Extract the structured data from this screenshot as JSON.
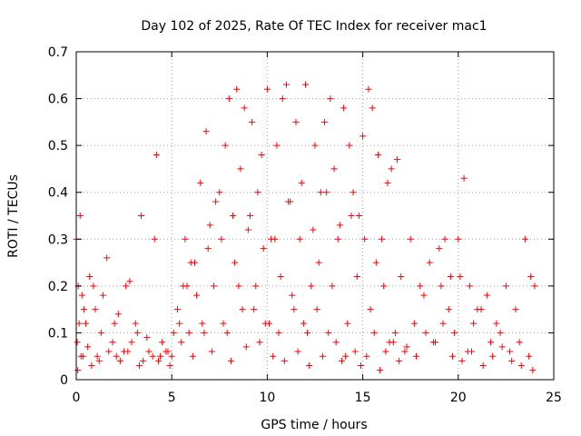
{
  "chart_data": {
    "type": "scatter",
    "title": "Day 102 of 2025, Rate Of TEC Index for receiver mac1",
    "xlabel": "GPS time / hours",
    "ylabel": "ROTI / TECUs",
    "xlim": [
      0,
      25
    ],
    "ylim": [
      0,
      0.7
    ],
    "xticks": [
      "0",
      "5",
      "10",
      "15",
      "20",
      "25"
    ],
    "yticks": [
      "0",
      "0.1",
      "0.2",
      "0.3",
      "0.4",
      "0.5",
      "0.6",
      "0.7"
    ],
    "grid": true,
    "marker": "+",
    "color": "#ff0000",
    "series": [
      {
        "x": [
          0.0,
          0.1,
          0.2,
          0.3,
          0.5,
          0.7,
          1.0,
          1.3,
          1.6,
          1.9,
          2.2,
          2.5,
          2.8,
          3.1,
          3.4,
          3.7,
          4.0,
          4.2,
          4.5,
          4.8,
          5.1,
          5.4,
          5.7,
          5.8,
          6.0,
          6.3,
          6.5,
          6.8,
          7.0,
          7.3,
          7.5,
          7.8,
          8.0,
          8.2,
          8.4,
          8.6,
          8.8,
          9.0,
          9.2,
          9.5,
          9.7,
          10.0,
          10.2,
          10.5,
          10.8,
          11.0,
          11.2,
          11.5,
          11.8,
          12.0,
          12.3,
          12.5,
          12.8,
          13.0,
          13.3,
          13.5,
          13.8,
          14.0,
          14.3,
          14.5,
          14.8,
          15.0,
          15.3,
          15.5,
          15.8,
          16.0,
          16.3,
          16.5,
          16.8,
          17.0,
          17.5,
          18.0,
          18.5,
          19.0,
          19.3,
          19.6,
          20.0,
          20.3,
          20.6,
          21.0,
          21.5,
          22.0,
          22.5,
          23.0,
          23.5,
          23.8,
          24.0,
          0.05,
          0.15,
          0.25,
          0.4,
          0.6,
          0.9,
          1.1,
          1.4,
          1.7,
          2.0,
          2.3,
          2.6,
          2.9,
          3.2,
          3.5,
          3.8,
          4.1,
          4.4,
          4.7,
          5.0,
          5.3,
          5.6,
          5.9,
          6.2,
          6.6,
          6.9,
          7.2,
          7.6,
          7.9,
          8.3,
          8.7,
          9.1,
          9.4,
          9.8,
          10.1,
          10.4,
          10.7,
          11.1,
          11.4,
          11.7,
          12.1,
          12.4,
          12.7,
          13.1,
          13.4,
          13.7,
          14.1,
          14.4,
          14.7,
          15.1,
          15.4,
          15.7,
          16.1,
          16.4,
          16.7,
          17.2,
          17.7,
          18.2,
          18.7,
          19.1,
          19.5,
          19.8,
          20.1,
          20.5,
          20.8,
          21.2,
          21.7,
          22.2,
          22.7,
          23.2,
          23.7,
          0.08,
          0.35,
          0.8,
          1.2,
          2.1,
          2.7,
          3.3,
          4.3,
          4.9,
          5.5,
          6.1,
          6.7,
          7.1,
          7.7,
          8.1,
          8.5,
          8.9,
          9.3,
          9.6,
          9.9,
          10.3,
          10.6,
          10.9,
          11.3,
          11.6,
          11.9,
          12.2,
          12.6,
          12.9,
          13.2,
          13.6,
          13.9,
          14.2,
          14.6,
          14.9,
          15.2,
          15.6,
          15.9,
          16.2,
          16.6,
          16.9,
          17.3,
          17.8,
          18.3,
          18.8,
          19.2,
          19.7,
          20.2,
          20.7,
          21.3,
          21.8,
          22.3,
          22.8,
          23.3,
          23.9
        ],
        "y": [
          0.3,
          0.2,
          0.35,
          0.18,
          0.12,
          0.22,
          0.15,
          0.1,
          0.26,
          0.08,
          0.14,
          0.06,
          0.21,
          0.12,
          0.35,
          0.09,
          0.05,
          0.48,
          0.08,
          0.06,
          0.1,
          0.12,
          0.3,
          0.2,
          0.25,
          0.18,
          0.42,
          0.53,
          0.33,
          0.38,
          0.4,
          0.5,
          0.6,
          0.35,
          0.62,
          0.45,
          0.58,
          0.32,
          0.55,
          0.4,
          0.48,
          0.62,
          0.3,
          0.5,
          0.6,
          0.63,
          0.38,
          0.55,
          0.42,
          0.63,
          0.2,
          0.5,
          0.4,
          0.55,
          0.6,
          0.45,
          0.33,
          0.58,
          0.5,
          0.4,
          0.35,
          0.52,
          0.62,
          0.58,
          0.48,
          0.3,
          0.42,
          0.45,
          0.47,
          0.22,
          0.3,
          0.2,
          0.25,
          0.28,
          0.3,
          0.22,
          0.3,
          0.43,
          0.2,
          0.15,
          0.18,
          0.12,
          0.2,
          0.15,
          0.3,
          0.22,
          0.2,
          0.08,
          0.12,
          0.05,
          0.15,
          0.07,
          0.2,
          0.05,
          0.18,
          0.06,
          0.12,
          0.04,
          0.2,
          0.08,
          0.1,
          0.04,
          0.06,
          0.3,
          0.05,
          0.06,
          0.05,
          0.15,
          0.2,
          0.1,
          0.25,
          0.12,
          0.28,
          0.2,
          0.3,
          0.1,
          0.25,
          0.15,
          0.35,
          0.2,
          0.28,
          0.12,
          0.3,
          0.22,
          0.38,
          0.15,
          0.3,
          0.1,
          0.32,
          0.25,
          0.4,
          0.2,
          0.3,
          0.05,
          0.35,
          0.22,
          0.3,
          0.15,
          0.25,
          0.2,
          0.08,
          0.1,
          0.06,
          0.12,
          0.18,
          0.08,
          0.2,
          0.15,
          0.1,
          0.22,
          0.06,
          0.12,
          0.15,
          0.08,
          0.1,
          0.06,
          0.08,
          0.05,
          0.02,
          0.05,
          0.03,
          0.04,
          0.05,
          0.06,
          0.03,
          0.04,
          0.03,
          0.08,
          0.05,
          0.1,
          0.06,
          0.12,
          0.04,
          0.2,
          0.07,
          0.15,
          0.08,
          0.12,
          0.05,
          0.1,
          0.04,
          0.18,
          0.06,
          0.12,
          0.03,
          0.15,
          0.05,
          0.1,
          0.08,
          0.04,
          0.12,
          0.06,
          0.03,
          0.05,
          0.1,
          0.02,
          0.06,
          0.08,
          0.04,
          0.07,
          0.05,
          0.1,
          0.08,
          0.12,
          0.05,
          0.04,
          0.06,
          0.03,
          0.05,
          0.07,
          0.04,
          0.03,
          0.02
        ]
      }
    ]
  }
}
